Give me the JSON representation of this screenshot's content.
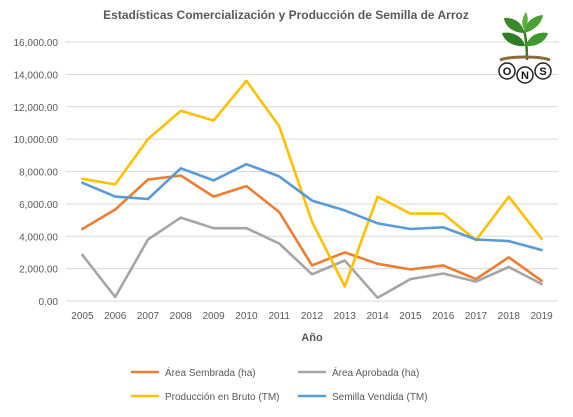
{
  "chart_data": {
    "type": "line",
    "title": "Estadísticas Comercialización y Producción de Semilla de Arroz",
    "xlabel": "Año",
    "ylabel": "",
    "categories": [
      "2005",
      "2006",
      "2007",
      "2008",
      "2009",
      "2010",
      "2011",
      "2012",
      "2013",
      "2014",
      "2015",
      "2016",
      "2017",
      "2018",
      "2019"
    ],
    "ylim": [
      0,
      16000
    ],
    "yticks": [
      0,
      2000,
      4000,
      6000,
      8000,
      10000,
      12000,
      14000,
      16000
    ],
    "ytick_labels": [
      "0.00",
      "2,000.00",
      "4,000.00",
      "6,000.00",
      "8,000.00",
      "10,000.00",
      "12,000.00",
      "14,000.00",
      "16,000.00"
    ],
    "grid": true,
    "legend_position": "bottom",
    "series": [
      {
        "name": "Área Sembrada (ha)",
        "color": "#ED7D31",
        "values": [
          4450,
          5650,
          7500,
          7750,
          6450,
          7100,
          5500,
          2200,
          3000,
          2300,
          1950,
          2200,
          1350,
          2700,
          1250
        ]
      },
      {
        "name": "Área Aprobada (ha)",
        "color": "#A5A5A5",
        "values": [
          2850,
          250,
          3800,
          5150,
          4500,
          4500,
          3550,
          1650,
          2500,
          200,
          1350,
          1700,
          1200,
          2100,
          1050
        ]
      },
      {
        "name": "Producción en Bruto (TM)",
        "color": "#FFC000",
        "values": [
          7550,
          7200,
          10000,
          11750,
          11150,
          13600,
          10800,
          4900,
          900,
          6450,
          5400,
          5400,
          3750,
          6450,
          3850
        ]
      },
      {
        "name": "Semilla Vendida (TM)",
        "color": "#5B9BD5",
        "values": [
          7300,
          6450,
          6300,
          8200,
          7450,
          8450,
          7700,
          6200,
          5600,
          4800,
          4450,
          4550,
          3800,
          3700,
          3150
        ]
      }
    ]
  },
  "logo": {
    "letters": [
      "O",
      "N",
      "S"
    ]
  }
}
